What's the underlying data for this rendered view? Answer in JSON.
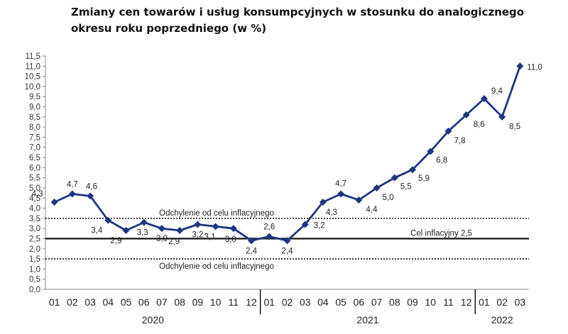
{
  "chart_data": {
    "type": "line",
    "title": "Zmiany cen towarów i usług konsumpcyjnych w stosunku do analogicznego okresu roku poprzedniego (w %)",
    "xlabel": "",
    "ylabel": "",
    "ylim": [
      0,
      11.5
    ],
    "ytick_step": 0.5,
    "ytick_labels": [
      "0,0",
      "0,5",
      "1,0",
      "1,5",
      "2,0",
      "2,5",
      "3,0",
      "3,5",
      "4,0",
      "4,5",
      "5,0",
      "5,5",
      "6,0",
      "6,5",
      "7,0",
      "7,5",
      "8,0",
      "8,5",
      "9,0",
      "9,5",
      "10,0",
      "10,5",
      "11,0",
      "11,5"
    ],
    "categories": [
      "01",
      "02",
      "03",
      "04",
      "05",
      "06",
      "07",
      "08",
      "09",
      "10",
      "11",
      "12",
      "01",
      "02",
      "03",
      "04",
      "05",
      "06",
      "07",
      "08",
      "09",
      "10",
      "11",
      "12",
      "01",
      "02",
      "03"
    ],
    "year_groups": [
      {
        "label": "2020",
        "start": 0,
        "end": 11
      },
      {
        "label": "2021",
        "start": 12,
        "end": 23
      },
      {
        "label": "2022",
        "start": 24,
        "end": 26
      }
    ],
    "series": [
      {
        "color": "#1f3580",
        "values": [
          4.3,
          4.7,
          4.6,
          3.4,
          2.9,
          3.3,
          3.0,
          2.9,
          3.2,
          3.1,
          3.0,
          2.4,
          2.6,
          2.4,
          3.2,
          4.3,
          4.7,
          4.4,
          5.0,
          5.5,
          5.9,
          6.8,
          7.8,
          8.6,
          9.4,
          8.5,
          11.0
        ],
        "data_labels": [
          "4,3",
          "4,7",
          "4,6",
          "3,4",
          "2,9",
          "3,3",
          "3,0",
          "2,9",
          "3,2",
          "3,1",
          "3,0",
          "2,4",
          "2,6",
          "2,4",
          "3,2",
          "4,3",
          "4,7",
          "4,4",
          "5,0",
          "5,5",
          "5,9",
          "6,8",
          "7,8",
          "8,6",
          "9,4",
          "8,5",
          "11,0"
        ]
      }
    ],
    "reference_lines": [
      {
        "value": 3.5,
        "style": "dotted",
        "label": "Odchylenie od celu inflacyjnego"
      },
      {
        "value": 2.5,
        "style": "solid",
        "label": "Cel inflacyjny 2,5"
      },
      {
        "value": 1.5,
        "style": "dotted",
        "label": "Odchylenie od celu inflacyjnego"
      }
    ],
    "grid": false,
    "legend": "none"
  }
}
